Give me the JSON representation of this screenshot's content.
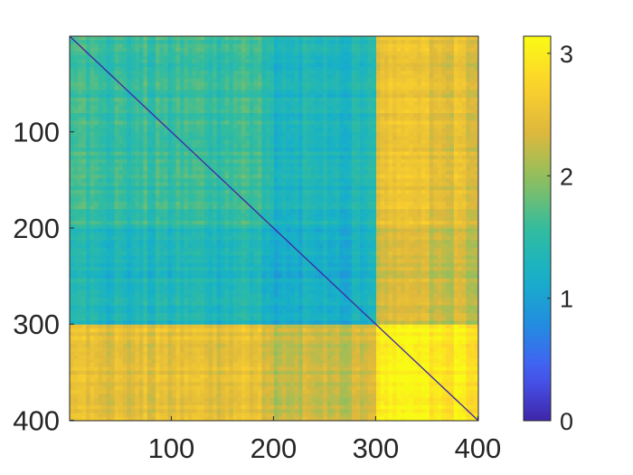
{
  "chart_data": {
    "type": "heatmap",
    "title": "",
    "xlabel": "",
    "ylabel": "",
    "n": 400,
    "xlim": [
      1,
      400
    ],
    "ylim": [
      1,
      400
    ],
    "y_direction": "reversed",
    "x_ticks": [
      {
        "value": 100,
        "label": "100"
      },
      {
        "value": 200,
        "label": "200"
      },
      {
        "value": 300,
        "label": "300"
      },
      {
        "value": 400,
        "label": "400"
      }
    ],
    "y_ticks": [
      {
        "value": 100,
        "label": "100"
      },
      {
        "value": 200,
        "label": "200"
      },
      {
        "value": 300,
        "label": "300"
      },
      {
        "value": 400,
        "label": "400"
      }
    ],
    "blocks": [
      {
        "rows": [
          1,
          200
        ],
        "cols": [
          1,
          200
        ],
        "value": 1.55
      },
      {
        "rows": [
          1,
          200
        ],
        "cols": [
          201,
          300
        ],
        "value": 1.3
      },
      {
        "rows": [
          1,
          200
        ],
        "cols": [
          301,
          400
        ],
        "value": 2.45
      },
      {
        "rows": [
          201,
          300
        ],
        "cols": [
          1,
          200
        ],
        "value": 1.3
      },
      {
        "rows": [
          201,
          300
        ],
        "cols": [
          201,
          300
        ],
        "value": 1.15
      },
      {
        "rows": [
          201,
          300
        ],
        "cols": [
          301,
          400
        ],
        "value": 2.25
      },
      {
        "rows": [
          301,
          400
        ],
        "cols": [
          1,
          200
        ],
        "value": 2.45
      },
      {
        "rows": [
          301,
          400
        ],
        "cols": [
          201,
          300
        ],
        "value": 2.25
      },
      {
        "rows": [
          301,
          400
        ],
        "cols": [
          301,
          400
        ],
        "value": 3.0
      }
    ],
    "diagonal_value": 0,
    "colorbar": {
      "colormap": "parula",
      "clim": [
        0,
        3.14
      ],
      "ticks": [
        {
          "value": 0,
          "label": "0"
        },
        {
          "value": 1,
          "label": "1"
        },
        {
          "value": 2,
          "label": "2"
        },
        {
          "value": 3,
          "label": "3"
        }
      ]
    },
    "grid": false,
    "legend": "none"
  }
}
